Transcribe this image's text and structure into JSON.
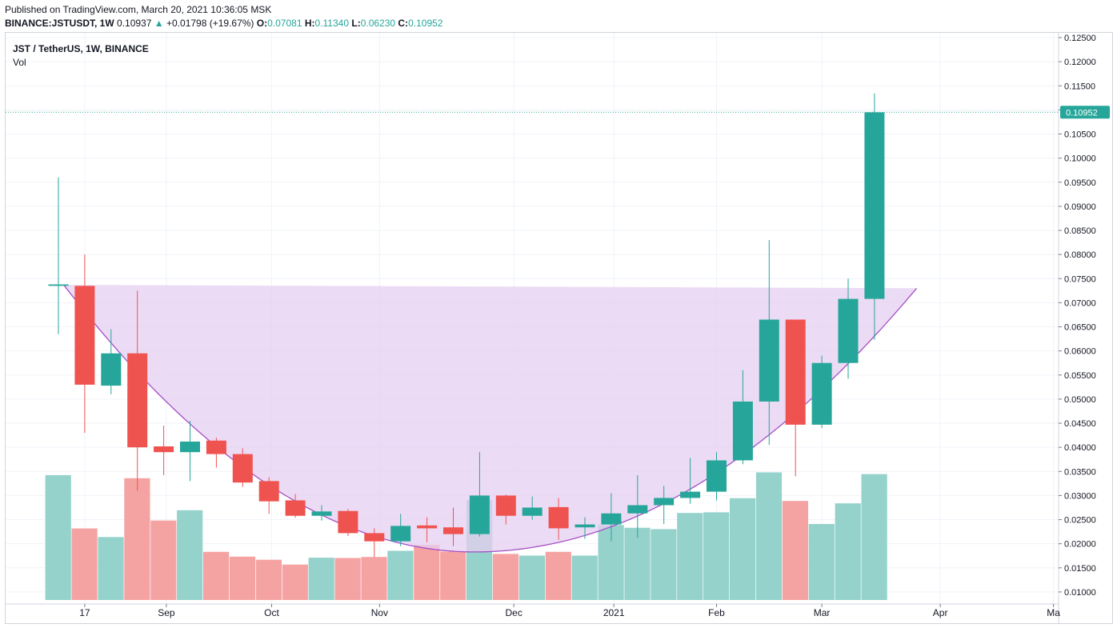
{
  "header": {
    "published": "Published on TradingView.com, March 20, 2021 10:36:05 MSK",
    "symbol": "BINANCE:JSTUSDT, 1W",
    "last": "0.10937",
    "change_arrow": "▲",
    "change": "+0.01798 (+19.67%)",
    "o_label": "O:",
    "o_value": "0.07081",
    "h_label": "H:",
    "h_value": "0.11340",
    "l_label": "L:",
    "l_value": "0.06230",
    "c_label": "C:",
    "c_value": "0.10952"
  },
  "legend": {
    "title": "JST / TetherUS, 1W, BINANCE",
    "volume": "Vol"
  },
  "colors": {
    "up": "#26a69a",
    "down": "#ef5350",
    "up_volume": "#94d2cb",
    "down_volume": "#f5a3a2",
    "pattern_fill": "#e6cff0",
    "pattern_line": "#a64fc6",
    "price_line": "#26a69a",
    "grid": "#f0f3fa"
  },
  "chart_data": {
    "type": "candlestick",
    "price_axis": {
      "min": 0.0075,
      "max": 0.125,
      "ticks": [
        "0.01000",
        "0.01500",
        "0.02000",
        "0.02500",
        "0.03000",
        "0.03500",
        "0.04000",
        "0.04500",
        "0.05000",
        "0.05500",
        "0.06000",
        "0.06500",
        "0.07000",
        "0.07500",
        "0.08000",
        "0.08500",
        "0.09000",
        "0.09500",
        "0.10000",
        "0.10500",
        "0.11000",
        "0.11500",
        "0.12000",
        "0.12500"
      ]
    },
    "time_axis": {
      "labels": [
        "17",
        "Sep",
        "Oct",
        "Nov",
        "Dec",
        "2021",
        "Feb",
        "Mar",
        "Apr",
        "Ma"
      ],
      "label_week_index": [
        1.0,
        4.1,
        8.1,
        12.2,
        17.3,
        21.1,
        25.0,
        29.0,
        33.5,
        37.8
      ]
    },
    "last_price": "0.10952",
    "candles": [
      {
        "o": 0.0735,
        "h": 0.096,
        "l": 0.0635,
        "c": 0.0738,
        "v": 0.0363
      },
      {
        "o": 0.0735,
        "h": 0.08,
        "l": 0.043,
        "c": 0.053,
        "v": 0.0208
      },
      {
        "o": 0.0528,
        "h": 0.0645,
        "l": 0.051,
        "c": 0.0595,
        "v": 0.0183
      },
      {
        "o": 0.0595,
        "h": 0.0725,
        "l": 0.031,
        "c": 0.04,
        "v": 0.0354
      },
      {
        "o": 0.0402,
        "h": 0.0445,
        "l": 0.0342,
        "c": 0.039,
        "v": 0.0231
      },
      {
        "o": 0.039,
        "h": 0.0455,
        "l": 0.033,
        "c": 0.0412,
        "v": 0.0261
      },
      {
        "o": 0.0414,
        "h": 0.042,
        "l": 0.0358,
        "c": 0.0386,
        "v": 0.014
      },
      {
        "o": 0.0386,
        "h": 0.0398,
        "l": 0.0318,
        "c": 0.0327,
        "v": 0.0126
      },
      {
        "o": 0.033,
        "h": 0.0338,
        "l": 0.0262,
        "c": 0.0288,
        "v": 0.0117
      },
      {
        "o": 0.029,
        "h": 0.0303,
        "l": 0.0254,
        "c": 0.0258,
        "v": 0.0103
      },
      {
        "o": 0.0258,
        "h": 0.028,
        "l": 0.0248,
        "c": 0.0267,
        "v": 0.0123
      },
      {
        "o": 0.0268,
        "h": 0.0272,
        "l": 0.0216,
        "c": 0.0222,
        "v": 0.0122
      },
      {
        "o": 0.0222,
        "h": 0.0232,
        "l": 0.0172,
        "c": 0.0205,
        "v": 0.0125
      },
      {
        "o": 0.0205,
        "h": 0.0262,
        "l": 0.0195,
        "c": 0.0237,
        "v": 0.0143
      },
      {
        "o": 0.0238,
        "h": 0.0255,
        "l": 0.0203,
        "c": 0.0232,
        "v": 0.016
      },
      {
        "o": 0.0234,
        "h": 0.0275,
        "l": 0.0195,
        "c": 0.022,
        "v": 0.0141
      },
      {
        "o": 0.022,
        "h": 0.039,
        "l": 0.0215,
        "c": 0.03,
        "v": 0.0291
      },
      {
        "o": 0.03,
        "h": 0.0302,
        "l": 0.024,
        "c": 0.0258,
        "v": 0.0134
      },
      {
        "o": 0.0258,
        "h": 0.0298,
        "l": 0.025,
        "c": 0.0275,
        "v": 0.0129
      },
      {
        "o": 0.0276,
        "h": 0.0295,
        "l": 0.0208,
        "c": 0.0232,
        "v": 0.014
      },
      {
        "o": 0.0234,
        "h": 0.0255,
        "l": 0.021,
        "c": 0.024,
        "v": 0.0129
      },
      {
        "o": 0.024,
        "h": 0.0305,
        "l": 0.0205,
        "c": 0.0263,
        "v": 0.0218
      },
      {
        "o": 0.0263,
        "h": 0.0342,
        "l": 0.0212,
        "c": 0.028,
        "v": 0.021
      },
      {
        "o": 0.028,
        "h": 0.032,
        "l": 0.0241,
        "c": 0.0295,
        "v": 0.0206
      },
      {
        "o": 0.0295,
        "h": 0.0378,
        "l": 0.0283,
        "c": 0.0308,
        "v": 0.0253
      },
      {
        "o": 0.0308,
        "h": 0.039,
        "l": 0.029,
        "c": 0.0373,
        "v": 0.0255
      },
      {
        "o": 0.0373,
        "h": 0.056,
        "l": 0.0365,
        "c": 0.0495,
        "v": 0.0296
      },
      {
        "o": 0.0495,
        "h": 0.083,
        "l": 0.0405,
        "c": 0.0665,
        "v": 0.0371
      },
      {
        "o": 0.0665,
        "h": 0.0665,
        "l": 0.034,
        "c": 0.0447,
        "v": 0.0288
      },
      {
        "o": 0.0447,
        "h": 0.059,
        "l": 0.044,
        "c": 0.0575,
        "v": 0.0221
      },
      {
        "o": 0.0575,
        "h": 0.075,
        "l": 0.0542,
        "c": 0.0708,
        "v": 0.0281
      },
      {
        "o": 0.0708,
        "h": 0.1134,
        "l": 0.0623,
        "c": 0.1095,
        "v": 0.0366
      }
    ],
    "pattern": {
      "type": "cup",
      "rim_left": {
        "week": 0.2,
        "price": 0.0737
      },
      "rim_right": {
        "week": 32.6,
        "price": 0.073
      },
      "bottom": {
        "week": 15.8,
        "price": 0.0183
      }
    }
  }
}
